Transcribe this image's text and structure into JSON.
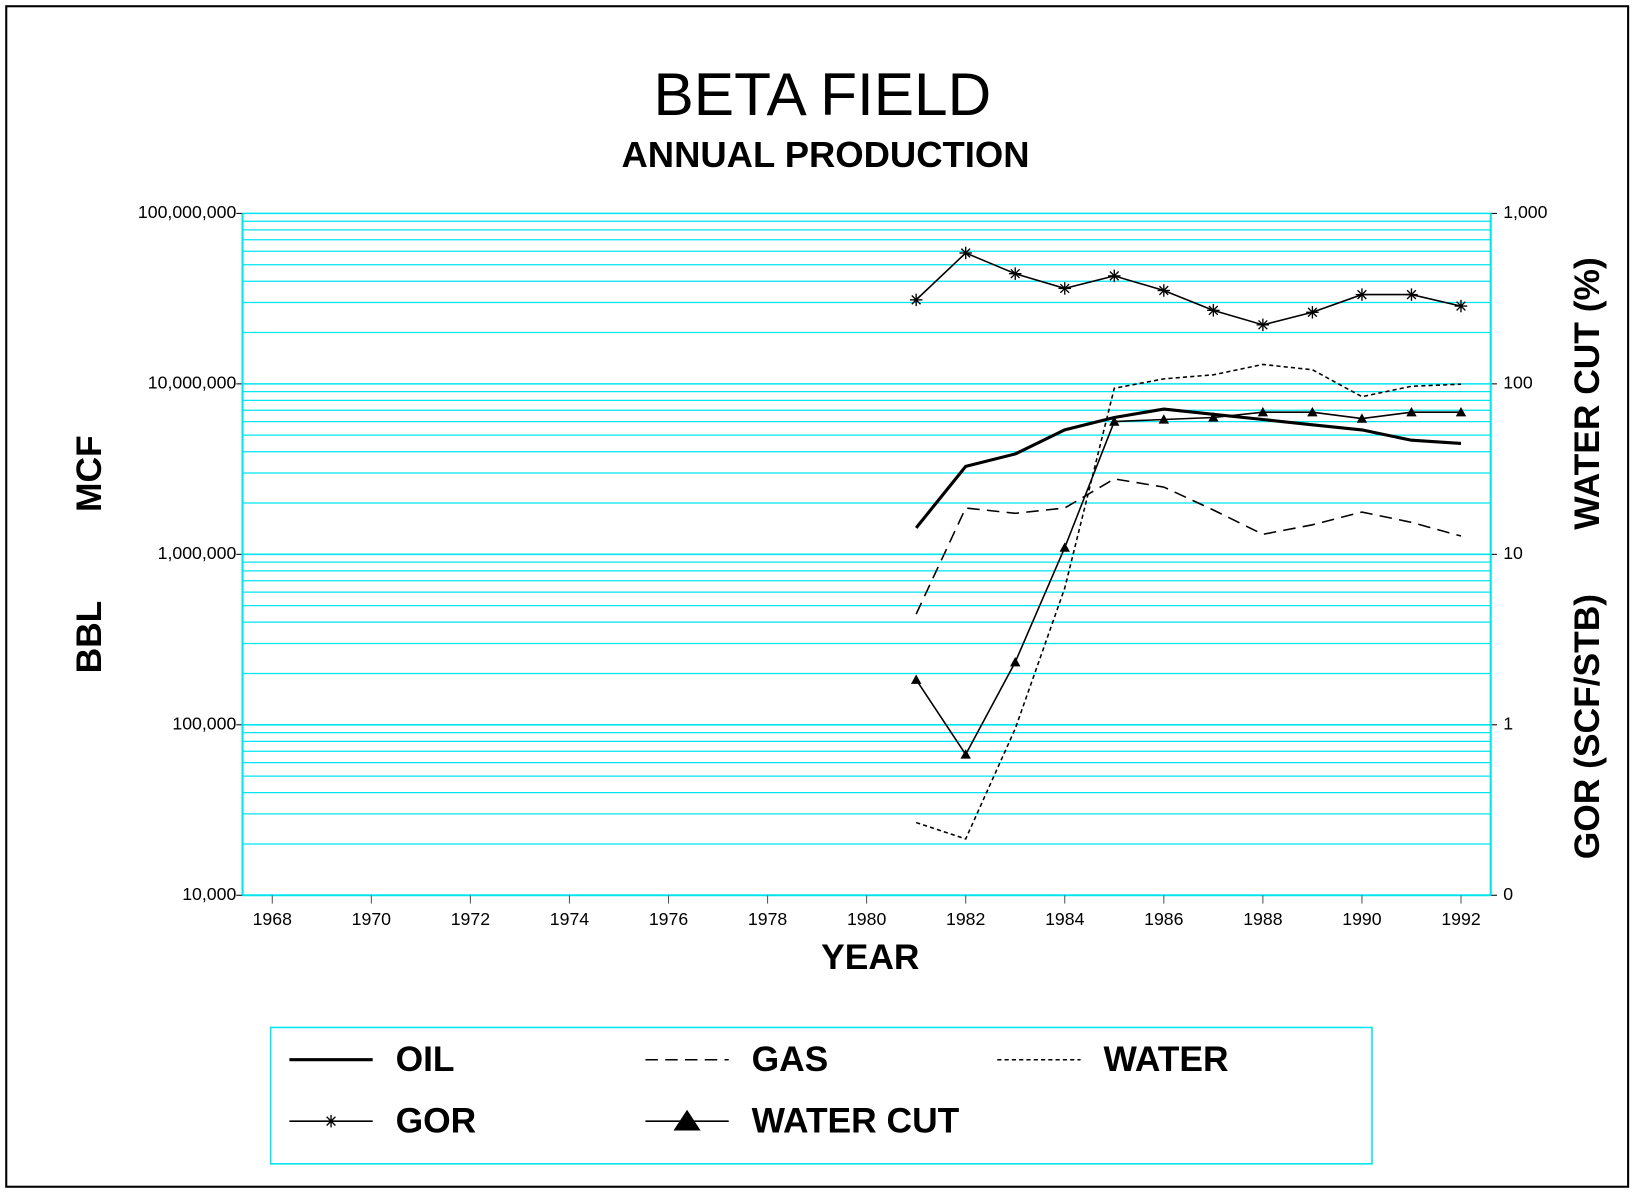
{
  "chart_data": {
    "type": "line",
    "title": "BETA FIELD",
    "subtitle": "ANNUAL PRODUCTION",
    "xlabel": "YEAR",
    "ylabel_top": "MCF",
    "ylabel_bottom": "BBL",
    "y2label_top": "WATER CUT (%)",
    "y2label_bottom": "GOR (SCF/STB)",
    "x": [
      1981,
      1982,
      1983,
      1984,
      1985,
      1986,
      1987,
      1988,
      1989,
      1990,
      1991,
      1992
    ],
    "xlim": [
      1967.4,
      1992.6
    ],
    "xticks": [
      1968,
      1970,
      1972,
      1974,
      1976,
      1978,
      1980,
      1982,
      1984,
      1986,
      1988,
      1990,
      1992
    ],
    "ylim": [
      10000,
      100000000
    ],
    "yticks": [
      {
        "value": 10000,
        "label": "10,000"
      },
      {
        "value": 100000,
        "label": "100,000"
      },
      {
        "value": 1000000,
        "label": "1,000,000"
      },
      {
        "value": 10000000,
        "label": "10,000,000"
      },
      {
        "value": 100000000,
        "label": "100,000,000"
      }
    ],
    "y_log": true,
    "y2lim": [
      0.1,
      1000
    ],
    "y2ticks": [
      {
        "value": 0.1,
        "label": "0"
      },
      1,
      10,
      100,
      {
        "value": 1000,
        "label": "1,000"
      }
    ],
    "y2_log": true,
    "grid": true,
    "minor_grid": true,
    "grid_color": "#00e5ee",
    "series": [
      {
        "name": "OIL",
        "color": "#000000",
        "line_style": "solid",
        "line_width": 3,
        "marker": null,
        "values": [
          1430000,
          3280000,
          3880000,
          5370000,
          6350000,
          7110000,
          6630000,
          6180000,
          5750000,
          5370000,
          4670000,
          4470000
        ]
      },
      {
        "name": "GAS",
        "color": "#000000",
        "line_style": "dashed",
        "line_width": 1.5,
        "marker": null,
        "values": [
          446000,
          1870000,
          1740000,
          1870000,
          2770000,
          2480000,
          1820000,
          1310000,
          1490000,
          1770000,
          1540000,
          1280000
        ]
      },
      {
        "name": "WATER",
        "color": "#000000",
        "line_style": "dotted",
        "line_width": 1.5,
        "marker": null,
        "values": [
          26700,
          21400,
          94800,
          634000,
          9420000,
          10700000,
          11300000,
          13000000,
          12100000,
          8410000,
          9680000,
          9960000
        ]
      },
      {
        "name": "GOR",
        "color": "#000000",
        "line_style": "solid",
        "line_width": 1.5,
        "marker": "asterisk",
        "axis": "y2",
        "values": [
          311,
          586,
          443,
          363,
          430,
          353,
          270,
          222,
          263,
          334,
          334,
          286
        ]
      },
      {
        "name": "WATER CUT",
        "color": "#000000",
        "line_style": "solid",
        "line_width": 1.5,
        "marker": "triangle",
        "axis": "y2",
        "values": [
          1.84,
          0.67,
          2.33,
          10.96,
          60.1,
          61.8,
          63.5,
          68.2,
          68.2,
          62.6,
          68.2,
          68.2
        ]
      }
    ]
  }
}
